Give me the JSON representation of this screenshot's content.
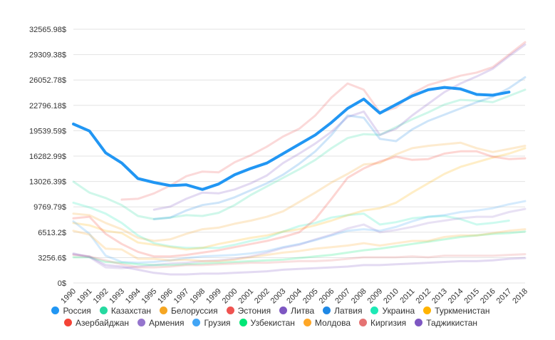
{
  "chart_data": {
    "type": "line",
    "categories": [
      "1990",
      "1991",
      "1992",
      "1993",
      "1994",
      "1995",
      "1996",
      "1997",
      "1998",
      "1999",
      "2000",
      "2001",
      "2002",
      "2003",
      "2004",
      "2005",
      "2006",
      "2007",
      "2008",
      "2009",
      "2010",
      "2011",
      "2012",
      "2013",
      "2014",
      "2015",
      "2016",
      "2017",
      "2018"
    ],
    "ylim": [
      0,
      32565.98
    ],
    "yticks": [
      {
        "value": 0,
        "label": "0$"
      },
      {
        "value": 3256.6,
        "label": "3256.6$"
      },
      {
        "value": 6513.2,
        "label": "6513.2$"
      },
      {
        "value": 9769.79,
        "label": "9769.79$"
      },
      {
        "value": 13026.39,
        "label": "13026.39$"
      },
      {
        "value": 16282.99,
        "label": "16282.99$"
      },
      {
        "value": 19539.59,
        "label": "19539.59$"
      },
      {
        "value": 22796.18,
        "label": "22796.18$"
      },
      {
        "value": 26052.78,
        "label": "26052.78$"
      },
      {
        "value": 29309.38,
        "label": "29309.38$"
      },
      {
        "value": 32565.98,
        "label": "32565.98$"
      }
    ],
    "grid": true,
    "legend": "bottom",
    "series": [
      {
        "name": "Россия",
        "color": "#2196f3",
        "highlighted": true,
        "values": [
          20400,
          19500,
          16700,
          15400,
          13400,
          12900,
          12500,
          12600,
          12000,
          12700,
          13900,
          14700,
          15400,
          16600,
          17800,
          19000,
          20600,
          22400,
          23600,
          21800,
          22900,
          24000,
          24800,
          25100,
          24900,
          24200,
          24100,
          24500,
          null
        ]
      },
      {
        "name": "Казахстан",
        "color": "#26d9a0",
        "values": [
          13000,
          11600,
          10900,
          10000,
          8600,
          8200,
          8400,
          8700,
          8600,
          9000,
          10000,
          11300,
          12400,
          13500,
          14600,
          15800,
          17300,
          18600,
          19100,
          19000,
          20000,
          21000,
          21900,
          22900,
          23500,
          23400,
          23200,
          24000,
          24800
        ]
      },
      {
        "name": "Белоруссия",
        "color": "#f5a623",
        "values": [
          8900,
          8700,
          7700,
          6900,
          5800,
          5400,
          5600,
          6300,
          6900,
          7100,
          7600,
          8000,
          8500,
          9200,
          10400,
          11600,
          12900,
          14000,
          15200,
          15400,
          16500,
          17300,
          17600,
          17800,
          18000,
          17300,
          16800,
          17200,
          17600
        ]
      },
      {
        "name": "Эстония",
        "color": "#ef5350",
        "values": [
          null,
          null,
          null,
          10700,
          10800,
          11500,
          12500,
          13700,
          14300,
          14200,
          15500,
          16400,
          17500,
          18800,
          19800,
          21500,
          23800,
          25600,
          24800,
          21900,
          22500,
          24300,
          25400,
          26000,
          26600,
          27000,
          27700,
          29300,
          30900
        ]
      },
      {
        "name": "Литва",
        "color": "#7e57c2",
        "values": [
          null,
          null,
          null,
          null,
          null,
          9400,
          9800,
          10800,
          11600,
          11500,
          12000,
          12800,
          13800,
          15400,
          16600,
          17900,
          19400,
          21300,
          22000,
          19000,
          19800,
          21500,
          23000,
          24500,
          25600,
          26500,
          27500,
          29100,
          30600
        ]
      },
      {
        "name": "Латвия",
        "color": "#1e88e5",
        "values": [
          null,
          null,
          null,
          null,
          null,
          8200,
          8400,
          9300,
          10000,
          10300,
          11000,
          11900,
          12800,
          13900,
          15300,
          16900,
          19000,
          21500,
          21200,
          18500,
          18200,
          19700,
          20800,
          21600,
          22400,
          23200,
          23900,
          25000,
          26400
        ]
      },
      {
        "name": "Украина",
        "color": "#1de9b6",
        "values": [
          10300,
          9700,
          8900,
          7700,
          6100,
          5100,
          4700,
          4500,
          4500,
          4500,
          4900,
          5400,
          5800,
          6600,
          7300,
          7700,
          8400,
          8700,
          8900,
          7500,
          7800,
          8300,
          8500,
          8600,
          8200,
          7500,
          7700,
          8000,
          null
        ]
      },
      {
        "name": "Туркменистан",
        "color": "#ffb300",
        "values": [
          7700,
          7400,
          6700,
          6400,
          5200,
          4900,
          4600,
          4300,
          4500,
          5000,
          5400,
          5800,
          6100,
          6600,
          6900,
          7400,
          8000,
          8700,
          9300,
          9600,
          10300,
          11600,
          12800,
          14000,
          14900,
          15500,
          16100,
          16600,
          17300
        ]
      },
      {
        "name": "Азербайджан",
        "color": "#f44336",
        "values": [
          8300,
          8500,
          6300,
          5000,
          4000,
          3400,
          3400,
          3600,
          3900,
          4200,
          4600,
          5000,
          5400,
          5900,
          6500,
          8200,
          10800,
          13500,
          14700,
          15600,
          16200,
          15800,
          15900,
          16600,
          16900,
          16900,
          16200,
          15900,
          16000
        ]
      },
      {
        "name": "Армения",
        "color": "#9575cd",
        "values": [
          3800,
          3300,
          2000,
          1900,
          2100,
          2300,
          2500,
          2600,
          2800,
          2900,
          3100,
          3400,
          3900,
          4500,
          4900,
          5600,
          6200,
          7000,
          7500,
          6500,
          6800,
          7200,
          7700,
          8000,
          8300,
          8500,
          8500,
          9100,
          9500
        ]
      },
      {
        "name": "Грузия",
        "color": "#42a5f5",
        "values": [
          7900,
          6300,
          3500,
          2700,
          2600,
          2700,
          2900,
          3200,
          3400,
          3500,
          3600,
          3800,
          4100,
          4600,
          5000,
          5500,
          6100,
          6700,
          6900,
          6700,
          7200,
          7900,
          8500,
          8700,
          9100,
          9300,
          9600,
          10100,
          10500
        ]
      },
      {
        "name": "Узбекистан",
        "color": "#00e676",
        "values": [
          3300,
          3300,
          2700,
          2600,
          2400,
          2300,
          2300,
          2400,
          2500,
          2600,
          2700,
          2800,
          2900,
          3000,
          3200,
          3400,
          3600,
          3900,
          4200,
          4400,
          4700,
          5000,
          5300,
          5600,
          5900,
          6100,
          6300,
          6400,
          6600
        ]
      },
      {
        "name": "Молдова",
        "color": "#ffa726",
        "values": [
          6700,
          6200,
          4400,
          4300,
          3100,
          3100,
          2900,
          3000,
          2800,
          2800,
          3000,
          3300,
          3600,
          3900,
          4100,
          4400,
          4600,
          4800,
          5100,
          4800,
          5100,
          5400,
          5400,
          5900,
          6100,
          6100,
          6400,
          6700,
          6900
        ]
      },
      {
        "name": "Киргизия",
        "color": "#e57373",
        "values": [
          3600,
          3400,
          2900,
          2400,
          2000,
          2000,
          2100,
          2300,
          2300,
          2400,
          2500,
          2600,
          2600,
          2700,
          2800,
          2800,
          2900,
          3100,
          3300,
          3300,
          3300,
          3400,
          3300,
          3500,
          3500,
          3500,
          3500,
          3600,
          3700
        ]
      },
      {
        "name": "Таджикистан",
        "color": "#7e57c2",
        "values": [
          3700,
          3400,
          2300,
          2100,
          1700,
          1300,
          1100,
          1100,
          1200,
          1200,
          1300,
          1400,
          1500,
          1700,
          1800,
          1900,
          2000,
          2100,
          2300,
          2300,
          2400,
          2500,
          2600,
          2700,
          2800,
          2800,
          2900,
          3100,
          3200
        ]
      }
    ]
  }
}
